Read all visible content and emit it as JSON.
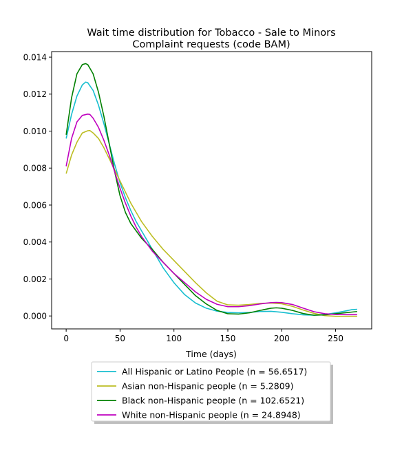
{
  "chart_data": {
    "type": "line",
    "title": "Wait time distribution  for Tobacco - Sale to Minors\nComplaint  requests (code BAM)",
    "title_lines": [
      "Wait time distribution  for Tobacco - Sale to Minors",
      "Complaint  requests (code BAM)"
    ],
    "xlabel": "Time (days)",
    "ylabel": "",
    "xlim": [
      -13.5,
      283.5
    ],
    "ylim": [
      -0.0007,
      0.0143
    ],
    "x_ticks": [
      0,
      50,
      100,
      150,
      200,
      250
    ],
    "x_tick_labels": [
      "0",
      "50",
      "100",
      "150",
      "200",
      "250"
    ],
    "y_ticks": [
      0.0,
      0.002,
      0.004,
      0.006,
      0.008,
      0.01,
      0.012,
      0.014
    ],
    "y_tick_labels": [
      "0.000",
      "0.002",
      "0.004",
      "0.006",
      "0.008",
      "0.010",
      "0.012",
      "0.014"
    ],
    "grid": false,
    "legend_position": "below plot, centered",
    "series": [
      {
        "name": "All Hispanic or Latino People (n = 56.6517)",
        "color": "#17becf",
        "x": [
          0,
          5,
          10,
          15,
          18,
          20,
          25,
          30,
          35,
          40,
          45,
          50,
          55,
          60,
          65,
          70,
          75,
          80,
          85,
          90,
          95,
          100,
          110,
          120,
          130,
          140,
          150,
          160,
          170,
          180,
          190,
          200,
          210,
          220,
          230,
          240,
          250,
          260,
          265,
          270
        ],
        "y": [
          0.0096,
          0.0109,
          0.0119,
          0.0125,
          0.01265,
          0.01262,
          0.0122,
          0.0114,
          0.0104,
          0.0093,
          0.0082,
          0.0072,
          0.0064,
          0.0057,
          0.0051,
          0.0046,
          0.0041,
          0.0036,
          0.0031,
          0.0026,
          0.0022,
          0.0018,
          0.00115,
          0.0007,
          0.00042,
          0.00026,
          0.00019,
          0.00017,
          0.00019,
          0.00024,
          0.00025,
          0.0002,
          0.00012,
          6e-05,
          4e-05,
          8e-05,
          0.00017,
          0.00028,
          0.00034,
          0.00036
        ]
      },
      {
        "name": "Asian non-Hispanic people (n = 5.2809)",
        "color": "#bcbd22",
        "x": [
          0,
          5,
          10,
          15,
          20,
          22,
          25,
          30,
          35,
          40,
          45,
          50,
          55,
          60,
          65,
          70,
          75,
          80,
          90,
          100,
          110,
          120,
          130,
          140,
          150,
          160,
          170,
          180,
          190,
          200,
          210,
          220,
          230,
          240,
          250,
          260,
          270
        ],
        "y": [
          0.0077,
          0.0087,
          0.0094,
          0.0099,
          0.01002,
          0.01003,
          0.0099,
          0.0096,
          0.0091,
          0.0085,
          0.0079,
          0.0073,
          0.0067,
          0.0061,
          0.0056,
          0.0051,
          0.0047,
          0.0043,
          0.0036,
          0.003,
          0.0024,
          0.0018,
          0.00125,
          0.0008,
          0.0006,
          0.00058,
          0.00062,
          0.00068,
          0.0007,
          0.00066,
          0.00052,
          0.00032,
          0.00014,
          2e-05,
          -2e-05,
          -2e-05,
          -2e-05
        ]
      },
      {
        "name": "Black non-Hispanic people (n = 102.6521)",
        "color": "#008000",
        "x": [
          0,
          5,
          10,
          15,
          18,
          20,
          25,
          30,
          35,
          40,
          45,
          50,
          55,
          60,
          65,
          70,
          75,
          80,
          90,
          100,
          110,
          120,
          130,
          140,
          150,
          160,
          170,
          180,
          190,
          195,
          200,
          210,
          220,
          230,
          240,
          250,
          260,
          270
        ],
        "y": [
          0.0098,
          0.0118,
          0.0131,
          0.0136,
          0.01365,
          0.0136,
          0.0131,
          0.0121,
          0.0108,
          0.0093,
          0.0078,
          0.0065,
          0.0056,
          0.005,
          0.0046,
          0.0042,
          0.0039,
          0.0036,
          0.0029,
          0.0023,
          0.0017,
          0.0011,
          0.00065,
          0.0003,
          0.00012,
          0.0001,
          0.00017,
          0.0003,
          0.00042,
          0.00044,
          0.00042,
          0.0003,
          0.00013,
          4e-05,
          6e-05,
          0.00012,
          0.00018,
          0.00024
        ]
      },
      {
        "name": "White non-Hispanic people (n = 24.8948)",
        "color": "#bf00bf",
        "x": [
          0,
          5,
          10,
          15,
          20,
          22,
          25,
          30,
          35,
          40,
          45,
          50,
          55,
          60,
          65,
          70,
          75,
          80,
          90,
          100,
          110,
          120,
          130,
          140,
          150,
          160,
          170,
          180,
          190,
          195,
          200,
          210,
          220,
          230,
          240,
          250,
          260,
          270
        ],
        "y": [
          0.0081,
          0.0096,
          0.0105,
          0.01085,
          0.01092,
          0.0109,
          0.0107,
          0.0102,
          0.0095,
          0.0087,
          0.0078,
          0.0069,
          0.0061,
          0.0054,
          0.0048,
          0.0043,
          0.0039,
          0.0035,
          0.0029,
          0.0023,
          0.0018,
          0.0013,
          0.0009,
          0.00063,
          0.0005,
          0.0005,
          0.00056,
          0.00065,
          0.00072,
          0.00073,
          0.00072,
          0.00062,
          0.00042,
          0.00023,
          0.00012,
          8e-05,
          7e-05,
          7e-05
        ]
      }
    ]
  }
}
